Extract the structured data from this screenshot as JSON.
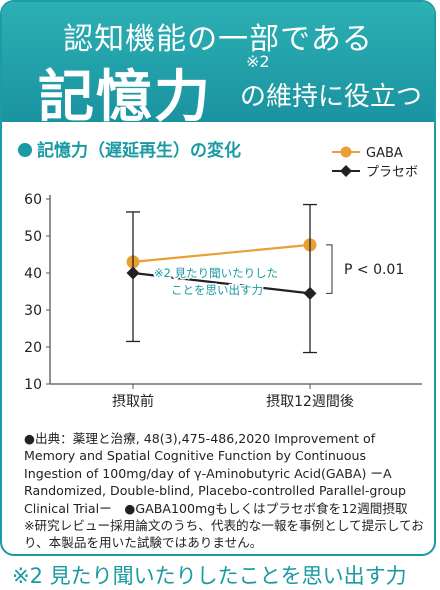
{
  "header": {
    "line1": "認知機能の一部である",
    "big": "記憶力",
    "note_mark": "※2",
    "line2": "の維持に役立つ"
  },
  "section_title": "記憶力（遅延再生）の変化",
  "colors": {
    "teal": "#1a9aa2",
    "gaba": "#e8a035",
    "placebo": "#222222"
  },
  "chart_data": {
    "type": "line",
    "title": "記憶力（遅延再生）の変化",
    "categories": [
      "摂取前",
      "摂取12週間後"
    ],
    "yticks": [
      10,
      20,
      30,
      40,
      50,
      60
    ],
    "ylim": [
      10,
      60
    ],
    "series": [
      {
        "name": "GABA",
        "color": "#e8a035",
        "marker": "circle",
        "values": [
          43,
          47.6
        ],
        "err_high": [
          null,
          null
        ],
        "err_low": [
          null,
          null
        ]
      },
      {
        "name": "プラセボ",
        "color": "#222222",
        "marker": "diamond",
        "values": [
          40,
          34.5
        ],
        "err_high": [
          56.5,
          58.5
        ],
        "err_low": [
          21.5,
          18.5
        ]
      }
    ],
    "significance": "P < 0.01",
    "annotation": [
      "※2 見たり聞いたりした",
      "ことを思い出す力"
    ],
    "legend_position": "top-right"
  },
  "source_text": "●出典：薬理と治療, 48(3),475-486,2020 Improvement of Memory and Spatial Cognitive Function by Continuous Ingestion of 100mg/day of γ-Aminobutyric Acid(GABA) ーA Randomized, Double-blind, Placebo-controlled Parallel-group Clinical Trialー　●GABA100mgもしくはプラセボ食を12週間摂取　※研究レビュー採用論文のうち、代表的な一報を事例として提示しており、本製品を用いた試験ではありません。",
  "footnote": "※2 見たり聞いたりしたことを思い出す力"
}
